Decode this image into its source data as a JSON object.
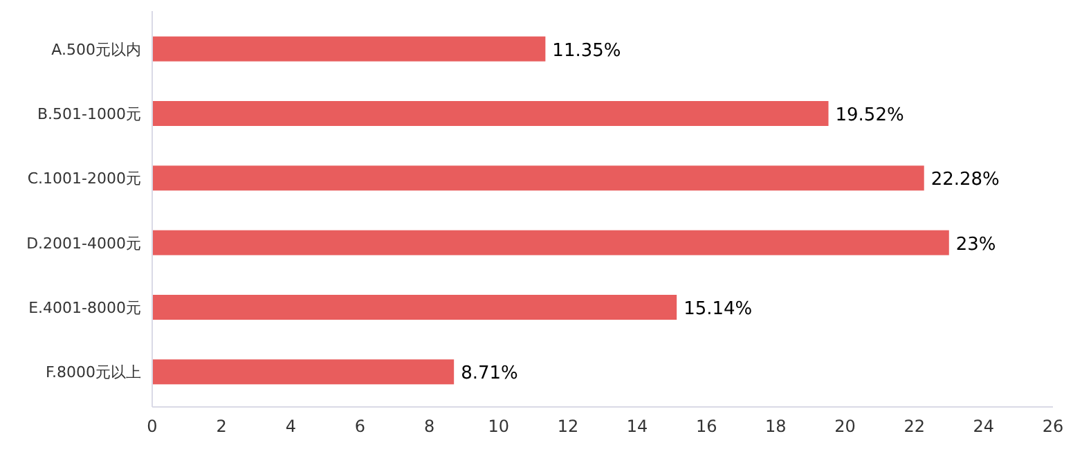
{
  "chart_data": {
    "type": "bar",
    "orientation": "horizontal",
    "categories": [
      "A.500元以内",
      "B.501-1000元",
      "C.1001-2000元",
      "D.2001-4000元",
      "E.4001-8000元",
      "F.8000元以上"
    ],
    "values": [
      11.35,
      19.52,
      22.28,
      23,
      15.14,
      8.71
    ],
    "value_labels": [
      "11.35%",
      "19.52%",
      "22.28%",
      "23%",
      "15.14%",
      "8.71%"
    ],
    "color": "#e85d5d",
    "xlim": [
      0,
      26
    ],
    "xticks": [
      0,
      2,
      4,
      6,
      8,
      10,
      12,
      14,
      16,
      18,
      20,
      22,
      24,
      26
    ]
  }
}
